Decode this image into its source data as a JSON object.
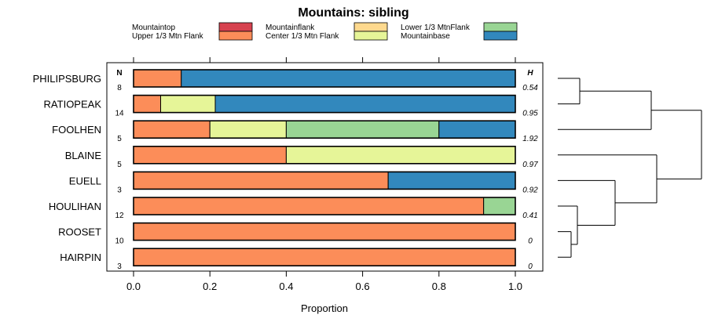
{
  "chart_data": {
    "type": "stacked-bar",
    "title": "Mountains: sibling",
    "xlabel": "Proportion",
    "xlim": [
      0,
      1
    ],
    "xticks": [
      "0.0",
      "0.2",
      "0.4",
      "0.6",
      "0.8",
      "1.0"
    ],
    "n_header": "N",
    "h_header": "H",
    "legend": [
      {
        "label": "Mountaintop",
        "color": "#d7424f"
      },
      {
        "label": "Upper 1/3 Mtn Flank",
        "color": "#fc8d59"
      },
      {
        "label": "Mountainflank",
        "color": "#fed98e"
      },
      {
        "label": "Center 1/3 Mtn Flank",
        "color": "#e6f598"
      },
      {
        "label": "Lower 1/3 MtnFlank",
        "color": "#99d594"
      },
      {
        "label": "Mountainbase",
        "color": "#3288bd"
      }
    ],
    "rows": [
      {
        "site": "PHILIPSBURG",
        "n": "8",
        "h": "0.54",
        "values": [
          0,
          0.125,
          0,
          0,
          0,
          0.875
        ]
      },
      {
        "site": "RATIOPEAK",
        "n": "14",
        "h": "0.95",
        "values": [
          0,
          0.071,
          0,
          0.143,
          0,
          0.786
        ]
      },
      {
        "site": "FOOLHEN",
        "n": "5",
        "h": "1.92",
        "values": [
          0,
          0.2,
          0,
          0.2,
          0.4,
          0.2
        ]
      },
      {
        "site": "BLAINE",
        "n": "5",
        "h": "0.97",
        "values": [
          0,
          0.4,
          0,
          0.6,
          0,
          0
        ]
      },
      {
        "site": "EUELL",
        "n": "3",
        "h": "0.92",
        "values": [
          0,
          0.667,
          0,
          0,
          0,
          0.333
        ]
      },
      {
        "site": "HOULIHAN",
        "n": "12",
        "h": "0.41",
        "values": [
          0,
          0.917,
          0,
          0,
          0.083,
          0
        ]
      },
      {
        "site": "ROOSET",
        "n": "10",
        "h": "0",
        "values": [
          0,
          1,
          0,
          0,
          0,
          0
        ]
      },
      {
        "site": "HAIRPIN",
        "n": "3",
        "h": "0",
        "values": [
          0,
          1,
          0,
          0,
          0,
          0
        ]
      }
    ],
    "dendrogram": {
      "description": "hierarchical clustering of sites (leaf order top to bottom)",
      "merges": [
        {
          "left": "PHILIPSBURG",
          "right": "RATIOPEAK",
          "height": 0.25
        },
        {
          "left": "ROOSET",
          "right": "HAIRPIN",
          "height": 0.05
        },
        {
          "left": "HOULIHAN",
          "right": "ROOSET+HAIRPIN",
          "height": 0.1
        },
        {
          "left": "EUELL",
          "right": "HOULIHAN+ROOSET+HAIRPIN",
          "height": 0.4
        },
        {
          "left": "PHILIPSBURG+RATIOPEAK",
          "right": "FOOLHEN",
          "height": 0.65
        },
        {
          "left": "BLAINE",
          "right": "EUELL+HOULIHAN+ROOSET+HAIRPIN",
          "height": 0.7
        },
        {
          "left": "PHILIPSBURG+RATIOPEAK+FOOLHEN",
          "right": "BLAINE+EUELL+HOULIHAN+ROOSET+HAIRPIN",
          "height": 1.0
        }
      ]
    }
  }
}
